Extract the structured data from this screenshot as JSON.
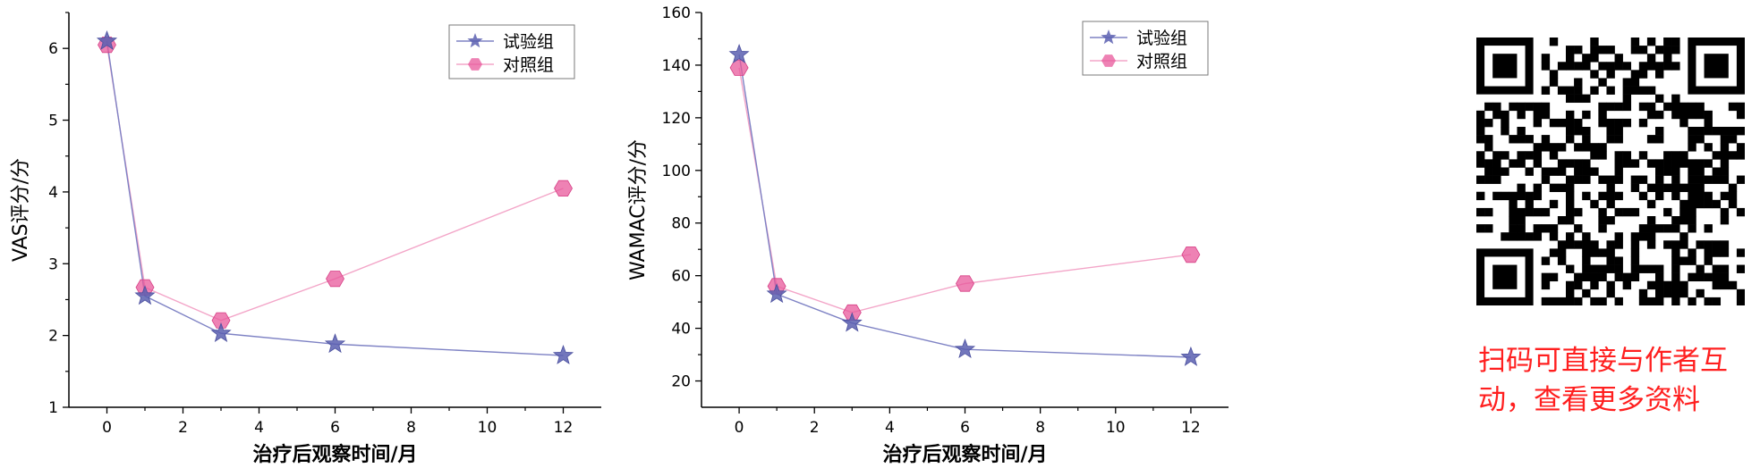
{
  "chart_data": [
    {
      "type": "line",
      "title": "",
      "xlabel": "治疗后观察时间/月",
      "ylabel": "VAS评分/分",
      "xlim": [
        -1,
        13
      ],
      "ylim": [
        1,
        6.5
      ],
      "xticks": [
        0,
        2,
        4,
        6,
        8,
        10,
        12
      ],
      "yticks": [
        1,
        2,
        3,
        4,
        5,
        6
      ],
      "grid": false,
      "legend_position": "top-right",
      "x": [
        0,
        1,
        3,
        6,
        12
      ],
      "series": [
        {
          "name": "试验组",
          "marker": "star",
          "color": "#5b5fb0",
          "values": [
            6.1,
            2.55,
            2.03,
            1.88,
            1.72
          ]
        },
        {
          "name": "对照组",
          "marker": "hexagon",
          "color": "#e8589b",
          "values": [
            6.05,
            2.67,
            2.21,
            2.79,
            4.05
          ]
        }
      ]
    },
    {
      "type": "line",
      "title": "",
      "xlabel": "治疗后观察时间/月",
      "ylabel": "WAMAC评分/分",
      "xlim": [
        -1,
        13
      ],
      "ylim": [
        10,
        160
      ],
      "xticks": [
        0,
        2,
        4,
        6,
        8,
        10,
        12
      ],
      "yticks": [
        20,
        40,
        60,
        80,
        100,
        120,
        140,
        160
      ],
      "grid": false,
      "legend_position": "top-right",
      "x": [
        0,
        1,
        3,
        6,
        12
      ],
      "series": [
        {
          "name": "试验组",
          "marker": "star",
          "color": "#5b5fb0",
          "values": [
            144,
            53,
            42,
            32,
            29
          ]
        },
        {
          "name": "对照组",
          "marker": "hexagon",
          "color": "#e8589b",
          "values": [
            139,
            56,
            46,
            57,
            68
          ]
        }
      ]
    }
  ],
  "qr": {
    "label": "QR code"
  },
  "note": {
    "text": "扫码可直接与作者互动，查看更多资料",
    "color": "#ff1f1f"
  }
}
